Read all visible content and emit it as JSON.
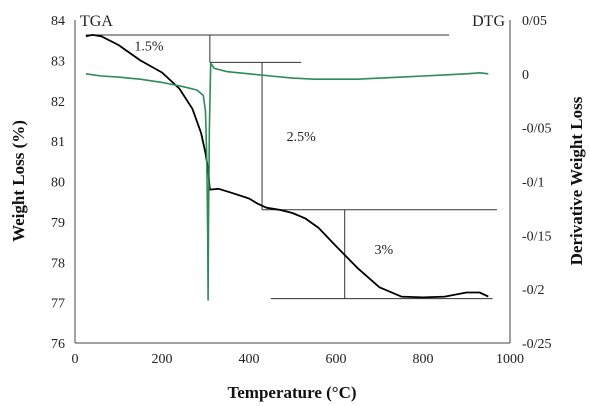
{
  "chart_data": {
    "type": "line",
    "xlabel": "Temperature (°C)",
    "ylabel_left": "Weight Loss (%)",
    "ylabel_right": "Derivative Weight Loss",
    "corner_left": "TGA",
    "corner_right": "DTG",
    "xlim": [
      0,
      1000
    ],
    "ylim_left": [
      76,
      84
    ],
    "ylim_right": [
      -0.25,
      0.05
    ],
    "x_ticks": [
      {
        "v": 0,
        "label": "0"
      },
      {
        "v": 200,
        "label": "200"
      },
      {
        "v": 400,
        "label": "400"
      },
      {
        "v": 600,
        "label": "600"
      },
      {
        "v": 800,
        "label": "800"
      },
      {
        "v": 1000,
        "label": "1000"
      }
    ],
    "y_left_ticks": [
      {
        "v": 76,
        "label": "76"
      },
      {
        "v": 77,
        "label": "77"
      },
      {
        "v": 78,
        "label": "78"
      },
      {
        "v": 79,
        "label": "79"
      },
      {
        "v": 80,
        "label": "80"
      },
      {
        "v": 81,
        "label": "81"
      },
      {
        "v": 82,
        "label": "82"
      },
      {
        "v": 83,
        "label": "83"
      },
      {
        "v": 84,
        "label": "84"
      }
    ],
    "y_right_ticks": [
      {
        "v": 0.05,
        "label": "0/05"
      },
      {
        "v": 0,
        "label": "0"
      },
      {
        "v": -0.05,
        "label": "-0/05"
      },
      {
        "v": -0.1,
        "label": "-0/1"
      },
      {
        "v": -0.15,
        "label": "-0/15"
      },
      {
        "v": -0.2,
        "label": "-0/2"
      },
      {
        "v": -0.25,
        "label": "-0/25"
      }
    ],
    "series": [
      {
        "axis": "left",
        "color": "#000000",
        "x": [
          25,
          40,
          60,
          100,
          150,
          200,
          240,
          270,
          290,
          300,
          306,
          310,
          330,
          360,
          400,
          420,
          440,
          470,
          500,
          530,
          560,
          600,
          650,
          700,
          750,
          800,
          850,
          900,
          930,
          950
        ],
        "y": [
          83.6,
          83.63,
          83.6,
          83.38,
          83.0,
          82.7,
          82.3,
          81.8,
          81.2,
          80.7,
          80.3,
          79.8,
          79.82,
          79.72,
          79.58,
          79.45,
          79.35,
          79.3,
          79.22,
          79.08,
          78.85,
          78.4,
          77.85,
          77.38,
          77.15,
          77.13,
          77.15,
          77.25,
          77.25,
          77.15
        ]
      },
      {
        "axis": "right",
        "color": "#2e8b57",
        "x": [
          25,
          60,
          100,
          150,
          200,
          250,
          280,
          295,
          300,
          303,
          305,
          306,
          307,
          309,
          312,
          320,
          350,
          400,
          450,
          500,
          550,
          600,
          650,
          700,
          750,
          800,
          850,
          900,
          930,
          950
        ],
        "y": [
          0.0,
          -0.002,
          -0.003,
          -0.005,
          -0.008,
          -0.012,
          -0.015,
          -0.02,
          -0.035,
          -0.08,
          -0.15,
          -0.21,
          -0.14,
          -0.05,
          0.01,
          0.005,
          0.002,
          0.0,
          -0.002,
          -0.004,
          -0.005,
          -0.005,
          -0.005,
          -0.004,
          -0.003,
          -0.002,
          -0.001,
          0.0,
          0.001,
          0.0
        ]
      }
    ],
    "annotations": [
      {
        "label": "1.5%",
        "text_x": 170,
        "text_y": 83.25
      },
      {
        "label": "2.5%",
        "text_x": 520,
        "text_y": 81.0
      },
      {
        "label": "3%",
        "text_x": 710,
        "text_y": 78.2
      }
    ],
    "step_lines": {
      "h": [
        {
          "y": 83.63,
          "x1": 25,
          "x2": 860
        },
        {
          "y": 82.95,
          "x1": 310,
          "x2": 520
        },
        {
          "y": 79.3,
          "x1": 430,
          "x2": 970
        },
        {
          "y": 77.1,
          "x1": 450,
          "x2": 960
        }
      ],
      "v": [
        {
          "x": 310,
          "y1": 83.63,
          "y2": 82.95
        },
        {
          "x": 430,
          "y1": 82.95,
          "y2": 79.3
        },
        {
          "x": 620,
          "y1": 79.3,
          "y2": 77.1
        }
      ]
    }
  }
}
